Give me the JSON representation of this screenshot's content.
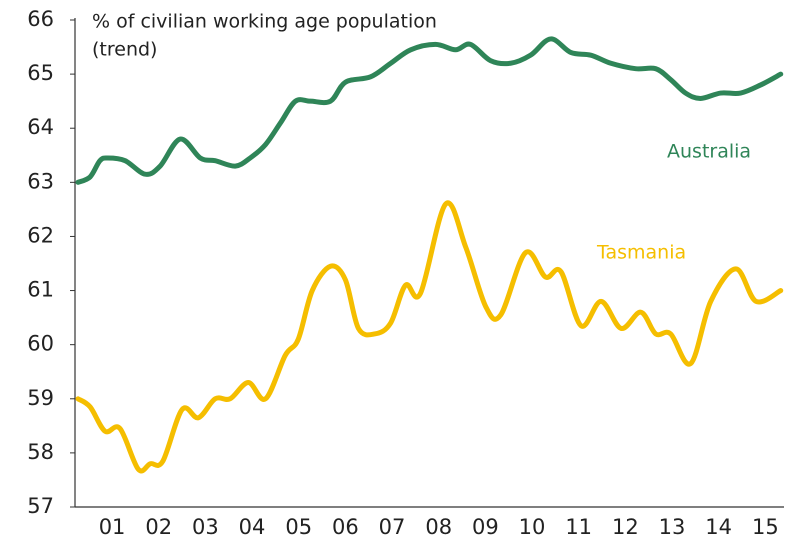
{
  "chart_data": {
    "type": "line",
    "y_label": [
      "% of civilian working age population",
      "(trend)"
    ],
    "xlim": [
      0.77,
      15.9
    ],
    "xticks": [
      {
        "value": 1.5,
        "label": "01"
      },
      {
        "value": 2.5,
        "label": "02"
      },
      {
        "value": 3.5,
        "label": "03"
      },
      {
        "value": 4.5,
        "label": "04"
      },
      {
        "value": 5.5,
        "label": "05"
      },
      {
        "value": 6.5,
        "label": "06"
      },
      {
        "value": 7.5,
        "label": "07"
      },
      {
        "value": 8.5,
        "label": "08"
      },
      {
        "value": 9.5,
        "label": "09"
      },
      {
        "value": 10.5,
        "label": "10"
      },
      {
        "value": 11.5,
        "label": "11"
      },
      {
        "value": 12.5,
        "label": "12"
      },
      {
        "value": 13.5,
        "label": "13"
      },
      {
        "value": 14.5,
        "label": "14"
      },
      {
        "value": 15.5,
        "label": "15"
      }
    ],
    "ylim": [
      57,
      66
    ],
    "yticks": [
      57,
      58,
      59,
      60,
      61,
      62,
      63,
      64,
      65,
      66
    ],
    "grid": false,
    "series": [
      {
        "name": "Australia",
        "color": "#2f8558",
        "x": [
          0.77,
          1.03,
          1.24,
          1.41,
          1.78,
          2.21,
          2.53,
          2.96,
          3.39,
          3.71,
          4.14,
          4.46,
          4.79,
          5.11,
          5.43,
          5.75,
          6.18,
          6.5,
          7.04,
          7.47,
          7.9,
          8.43,
          8.86,
          9.18,
          9.61,
          10.04,
          10.47,
          10.9,
          11.33,
          11.76,
          12.19,
          12.72,
          13.15,
          13.47,
          13.79,
          14.11,
          14.54,
          14.97,
          15.4,
          15.83
        ],
        "values": [
          63.0,
          63.1,
          63.4,
          63.45,
          63.4,
          63.15,
          63.3,
          63.8,
          63.45,
          63.4,
          63.3,
          63.45,
          63.7,
          64.1,
          64.5,
          64.5,
          64.5,
          64.85,
          64.95,
          65.2,
          65.45,
          65.55,
          65.45,
          65.55,
          65.25,
          65.2,
          65.35,
          65.65,
          65.4,
          65.35,
          65.2,
          65.1,
          65.1,
          64.9,
          64.65,
          64.55,
          64.65,
          64.65,
          64.8,
          65.0
        ]
      },
      {
        "name": "Tasmania",
        "color": "#f5be00",
        "x": [
          0.77,
          1.03,
          1.35,
          1.67,
          2.06,
          2.32,
          2.59,
          3.0,
          3.35,
          3.71,
          4.03,
          4.42,
          4.79,
          5.21,
          5.49,
          5.79,
          6.18,
          6.5,
          6.78,
          7.14,
          7.47,
          7.79,
          8.11,
          8.65,
          9.08,
          9.51,
          9.83,
          10.36,
          10.79,
          11.12,
          11.55,
          11.98,
          12.41,
          12.83,
          13.15,
          13.47,
          13.9,
          14.33,
          14.87,
          15.3,
          15.83
        ],
        "values": [
          59.0,
          58.85,
          58.4,
          58.45,
          57.7,
          57.8,
          57.85,
          58.8,
          58.65,
          59.0,
          59.0,
          59.3,
          59.0,
          59.8,
          60.1,
          61.0,
          61.45,
          61.2,
          60.3,
          60.2,
          60.4,
          61.1,
          60.95,
          62.6,
          61.8,
          60.7,
          60.55,
          61.7,
          61.25,
          61.35,
          60.35,
          60.8,
          60.3,
          60.6,
          60.2,
          60.2,
          59.65,
          60.8,
          61.4,
          60.8,
          61.0
        ]
      }
    ]
  }
}
